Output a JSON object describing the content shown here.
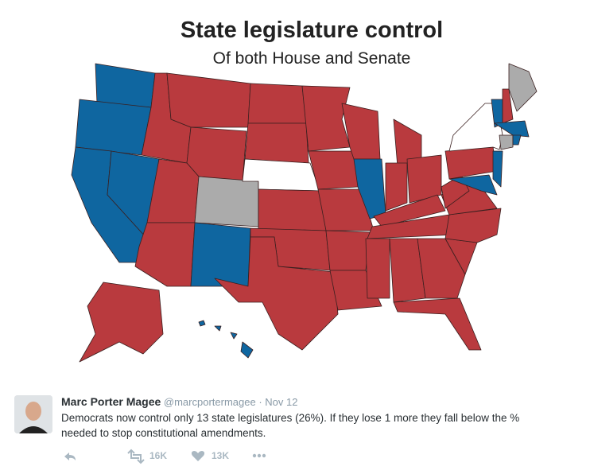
{
  "map": {
    "title": "State legislature control",
    "subtitle": "Of both House and Senate"
  },
  "tweet": {
    "author": "Marc Porter Magee",
    "handle": "@marcportermagee",
    "separator": "·",
    "date": "Nov 12",
    "text": [
      "Democrats now control only 13 state legislatures (26%). If they lose 1 more they fall below the %",
      "needed to stop constitutional amendments."
    ],
    "retweets": "16K",
    "likes": "13K"
  }
}
